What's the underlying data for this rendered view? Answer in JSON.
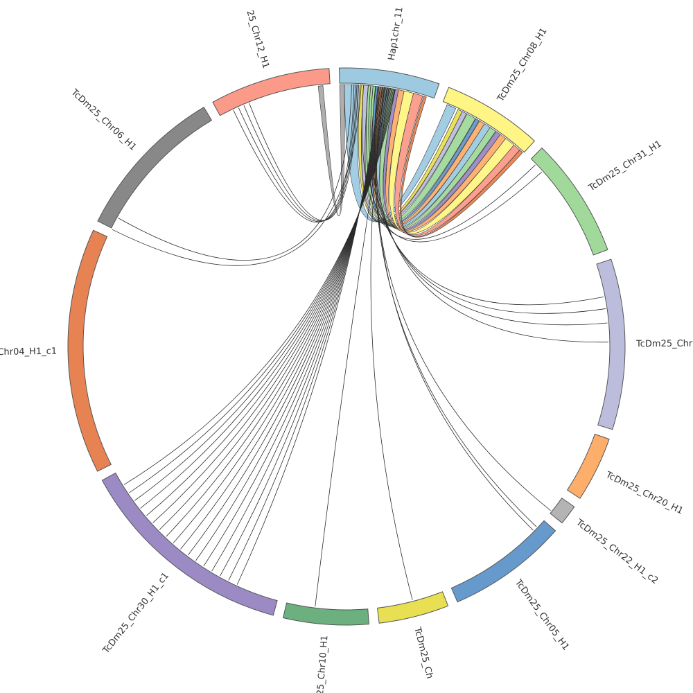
{
  "chart_data": {
    "type": "chord",
    "chromosomes": [
      {
        "name": "Hap1chr_11",
        "color": "#9ecae1",
        "start": 0,
        "end": 20
      },
      {
        "name": "TcDm25_Chr08_H1",
        "color": "#fff584",
        "start": 22,
        "end": 42
      },
      {
        "name": "TcDm25_Chr31_H1",
        "color": "#a1d99b",
        "start": 44,
        "end": 68
      },
      {
        "name": "TcDm25_Chr",
        "color": "#bcbddc",
        "start": 70,
        "end": 104
      },
      {
        "name": "TcDm25_Chr20_H1",
        "color": "#fdae6b",
        "start": 106,
        "end": 119
      },
      {
        "name": "TcDm25_Chr22_H1_c2",
        "color": "#b4b4b4",
        "start": 121,
        "end": 125
      },
      {
        "name": "TcDm25_Chr05_H1",
        "color": "#6699cc",
        "start": 127,
        "end": 151
      },
      {
        "name": "TcDm25_Ch",
        "color": "#e8df52",
        "start": 153,
        "end": 167
      },
      {
        "name": "25_Chr10_H1",
        "color": "#6cb07f",
        "start": 169,
        "end": 186
      },
      {
        "name": "TcDm25_Chr30_H1_c1",
        "color": "#9b8ac4",
        "start": 188,
        "end": 232
      },
      {
        "name": "Chr04_H1_c1",
        "color": "#e78352",
        "start": 234,
        "end": 283
      },
      {
        "name": "TcDm25_Chr06_H1",
        "color": "#888888",
        "start": 285,
        "end": 316
      },
      {
        "name": "25_Chr12_H1",
        "color": "#fb9a88",
        "start": 318,
        "end": 342
      }
    ],
    "ribbons": [
      {
        "from": [
          0.0,
          1.0
        ],
        "to": [
          339.5,
          340.5
        ],
        "color": "#aaaaaa"
      },
      {
        "from": [
          1.0,
          4.0
        ],
        "to": [
          23.0,
          25.0
        ],
        "color": "#9ecae1"
      },
      {
        "from": [
          4.2,
          5.0
        ],
        "to": [
          25.5,
          26.5
        ],
        "color": "#e8df52"
      },
      {
        "from": [
          5.0,
          6.0
        ],
        "to": [
          26.5,
          27.5
        ],
        "color": "#bcbddc"
      },
      {
        "from": [
          6.0,
          7.6
        ],
        "to": [
          27.6,
          29.6
        ],
        "color": "#a1d99b"
      },
      {
        "from": [
          7.6,
          8.2
        ],
        "to": [
          29.7,
          30.5
        ],
        "color": "#6699cc"
      },
      {
        "from": [
          8.3,
          9.4
        ],
        "to": [
          30.6,
          31.8
        ],
        "color": "#fdae6b"
      },
      {
        "from": [
          9.4,
          10.4
        ],
        "to": [
          31.8,
          33.2
        ],
        "color": "#9ecae1"
      },
      {
        "from": [
          10.4,
          11.6
        ],
        "to": [
          33.2,
          34.6
        ],
        "color": "#a1d99b"
      },
      {
        "from": [
          11.6,
          12.4
        ],
        "to": [
          34.7,
          35.8
        ],
        "color": "#9b8ac4"
      },
      {
        "from": [
          12.4,
          13.6
        ],
        "to": [
          35.8,
          37.2
        ],
        "color": "#fdae6b"
      },
      {
        "from": [
          13.6,
          15.6
        ],
        "to": [
          37.2,
          39.4
        ],
        "color": "#fff584"
      },
      {
        "from": [
          15.6,
          17.6
        ],
        "to": [
          39.4,
          41.0
        ],
        "color": "#fb9a88"
      },
      {
        "from": [
          17.8,
          18.4
        ],
        "to": [
          41.0,
          41.8
        ],
        "color": "#e78352"
      }
    ],
    "links": [
      [
        3.0,
        321.0
      ],
      [
        3.3,
        322.2
      ],
      [
        3.6,
        323.4
      ],
      [
        3.9,
        324.6
      ],
      [
        2.5,
        287.5
      ],
      [
        4.5,
        284.8
      ],
      [
        5.0,
        45.5
      ],
      [
        6.0,
        47.5
      ],
      [
        6.5,
        77.0
      ],
      [
        7.0,
        79.5
      ],
      [
        7.5,
        82.5
      ],
      [
        8.0,
        86.5
      ],
      [
        8.2,
        124.5
      ],
      [
        8.5,
        129.0
      ],
      [
        9.0,
        130.0
      ],
      [
        9.5,
        159.5
      ],
      [
        10.0,
        180.0
      ],
      [
        8.5,
        197.0
      ],
      [
        8.7,
        199.0
      ],
      [
        8.9,
        201.0
      ],
      [
        9.1,
        203.0
      ],
      [
        9.3,
        205.0
      ],
      [
        9.5,
        207.0
      ],
      [
        9.7,
        209.0
      ],
      [
        9.9,
        211.0
      ],
      [
        10.1,
        213.0
      ],
      [
        10.3,
        215.0
      ],
      [
        10.5,
        217.0
      ],
      [
        10.7,
        219.0
      ],
      [
        10.9,
        221.0
      ],
      [
        11.1,
        223.0
      ],
      [
        11.3,
        225.0
      ],
      [
        11.5,
        227.0
      ],
      [
        11.7,
        229.0
      ]
    ]
  }
}
